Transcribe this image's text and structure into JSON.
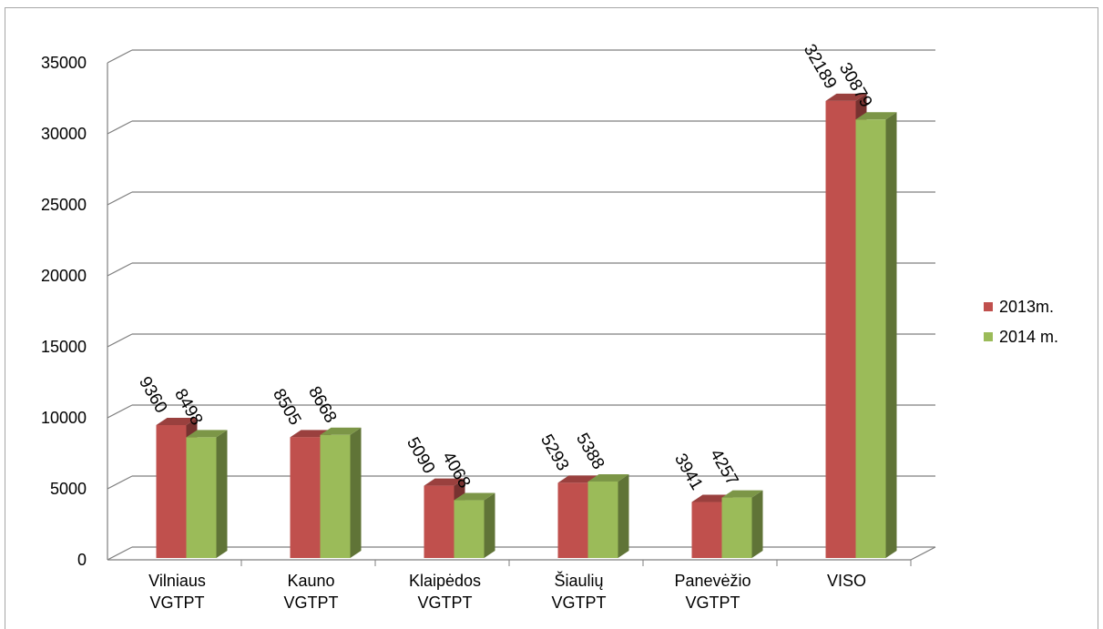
{
  "chart_data": {
    "type": "bar",
    "style": "3d-clustered-column",
    "categories": [
      [
        "Vilniaus",
        "VGTPT"
      ],
      [
        "Kauno",
        "VGTPT"
      ],
      [
        "Klaipėdos",
        "VGTPT"
      ],
      [
        "Šiaulių",
        "VGTPT"
      ],
      [
        "Panevėžio",
        "VGTPT"
      ],
      [
        "VISO"
      ]
    ],
    "series": [
      {
        "name": "2013m.",
        "color": "#c0504d",
        "values": [
          9360,
          8505,
          5090,
          5293,
          3941,
          32189
        ]
      },
      {
        "name": "2014 m.",
        "color": "#9bbb59",
        "values": [
          8498,
          8668,
          4068,
          5388,
          4257,
          30879
        ]
      }
    ],
    "ylim": [
      0,
      35000
    ],
    "yticks": [
      0,
      5000,
      10000,
      15000,
      20000,
      25000,
      30000,
      35000
    ],
    "data_labels": true,
    "grid": true,
    "legend_position": "right",
    "title": "",
    "xlabel": "",
    "ylabel": ""
  }
}
